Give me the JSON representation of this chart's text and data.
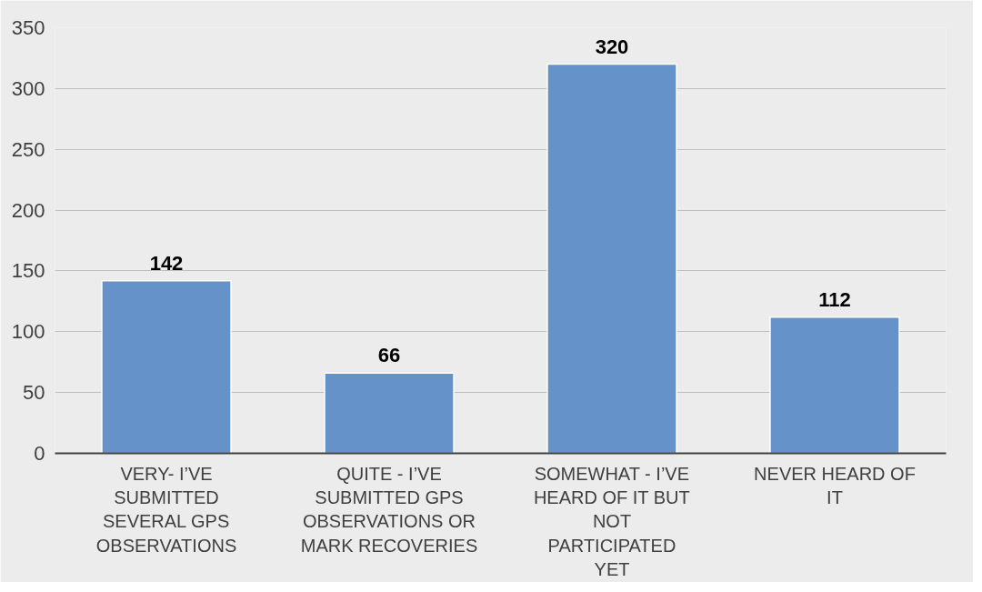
{
  "chart_data": {
    "type": "bar",
    "categories": [
      "VERY- I’VE SUBMITTED SEVERAL GPS OBSERVATIONS",
      "QUITE - I’VE SUBMITTED GPS OBSERVATIONS OR MARK RECOVERIES",
      "SOMEWHAT - I’VE HEARD OF IT BUT NOT PARTICIPATED YET",
      "NEVER HEARD OF IT"
    ],
    "values": [
      142,
      66,
      320,
      112
    ],
    "color": "#6592c8",
    "ylim": [
      0,
      350
    ],
    "yticks": [
      0,
      50,
      100,
      150,
      200,
      250,
      300,
      350
    ],
    "grid": "y",
    "data_labels": true
  }
}
